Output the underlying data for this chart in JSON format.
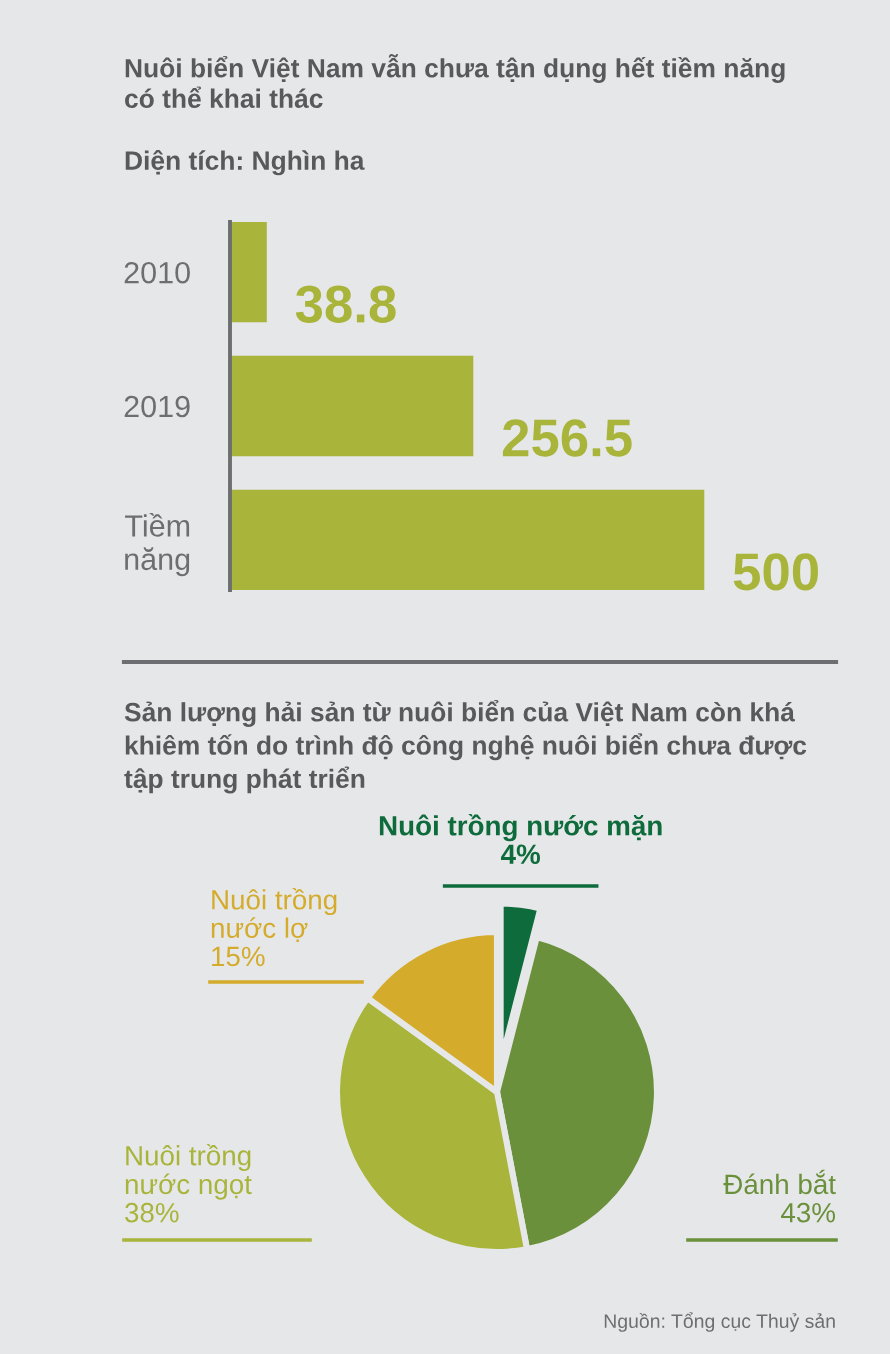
{
  "chart_data": [
    {
      "type": "bar",
      "orientation": "horizontal",
      "title": "Nuôi biển Việt Nam vẫn chưa tận dụng hết tiềm năng có thể khai thác",
      "subtitle": "Diện tích: Nghìn ha",
      "categories": [
        "2010",
        "2019",
        "Tiềm năng"
      ],
      "values": [
        38.8,
        256.5,
        500
      ],
      "color": "#a9b43a",
      "data_labels": true,
      "tick_labels": "y"
    },
    {
      "type": "pie",
      "title": "Sản lượng hải sản từ nuôi biển của Việt Nam còn khá khiêm tốn do trình độ công nghệ nuôi biển chưa được tập trung phát triển",
      "categories": [
        "Nuôi trồng nước mặn",
        "Đánh bắt",
        "Nuôi trồng nước ngọt",
        "Nuôi trồng nước lợ"
      ],
      "values": [
        4,
        43,
        38,
        15
      ],
      "colors": [
        "#0e6b3b",
        "#6b903b",
        "#a9b43a",
        "#d4ab2b"
      ],
      "value_labels": [
        "4%",
        "43%",
        "38%",
        "15%"
      ],
      "annotations": [
        "Nguồn: Tổng cục Thuỷ sản"
      ]
    }
  ]
}
